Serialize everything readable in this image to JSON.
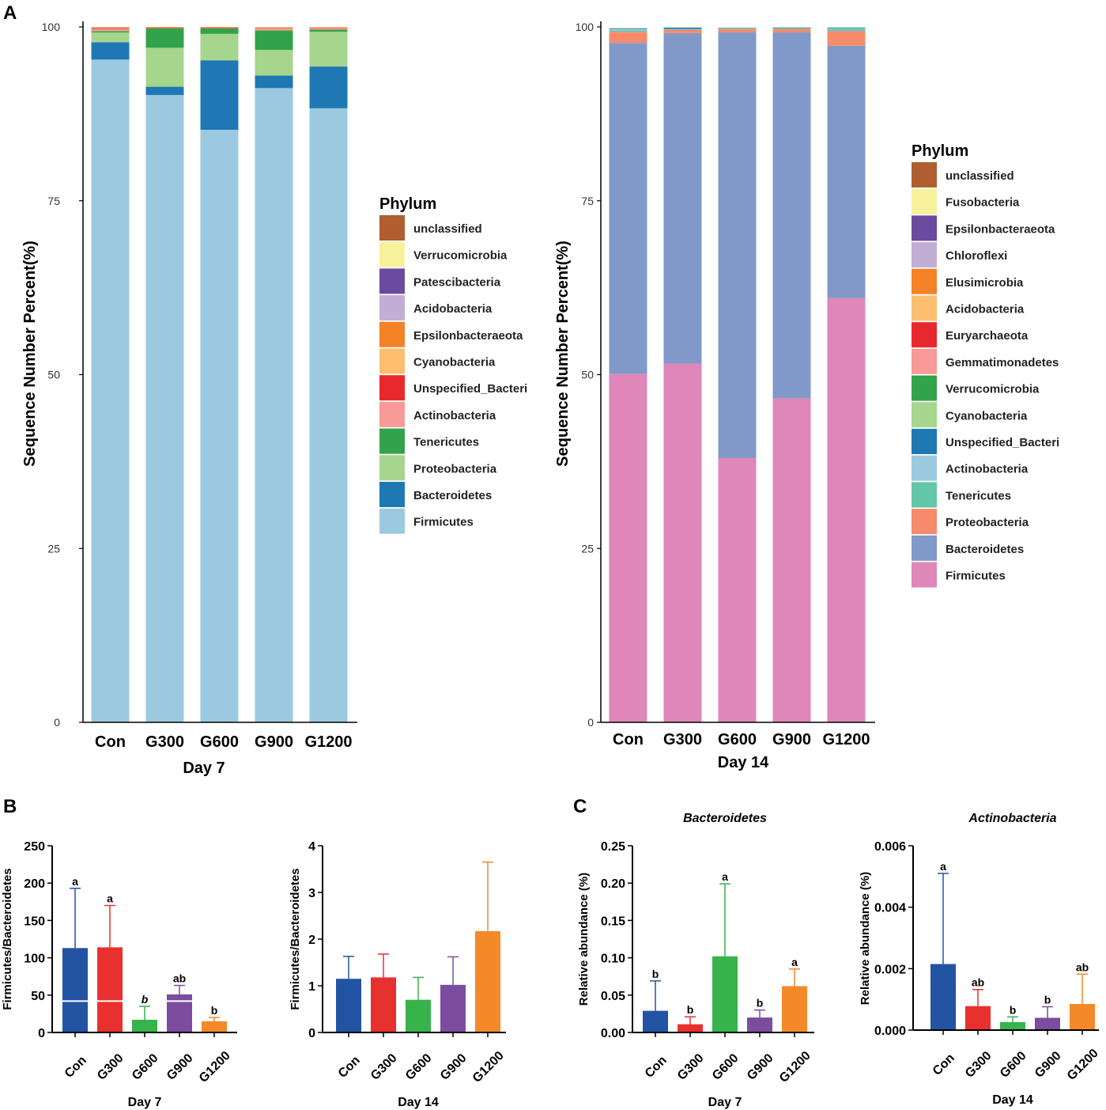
{
  "panel_labels": {
    "a": "A",
    "b": "B",
    "c": "C"
  },
  "chart_data": [
    {
      "id": "A1",
      "type": "bar",
      "stacked": true,
      "xlabel": "Day 7",
      "ylabel": "Sequence Number Percent(%)",
      "ylim": [
        0,
        100
      ],
      "yticks": [
        0,
        25,
        50,
        75,
        100
      ],
      "categories": [
        "Con",
        "G300",
        "G600",
        "G900",
        "G1200"
      ],
      "legend_title": "Phylum",
      "legend_order": [
        "unclassified",
        "Verrucomicrobia",
        "Patescibacteria",
        "Acidobacteria",
        "Epsilonbacteraeota",
        "Cyanobacteria",
        "Unspecified_Bacteri",
        "Actinobacteria",
        "Tenericutes",
        "Proteobacteria",
        "Bacteroidetes",
        "Firmicutes"
      ],
      "series": [
        {
          "name": "Firmicutes",
          "color": "#9BCAE0",
          "values": [
            95.3,
            90.2,
            85.2,
            91.2,
            88.3
          ]
        },
        {
          "name": "Bacteroidetes",
          "color": "#1F78B4",
          "values": [
            2.5,
            1.2,
            10.0,
            1.8,
            6.0
          ]
        },
        {
          "name": "Proteobacteria",
          "color": "#A6D58E",
          "values": [
            1.4,
            5.6,
            3.8,
            3.7,
            5.0
          ]
        },
        {
          "name": "Tenericutes",
          "color": "#33A34B",
          "values": [
            0.2,
            2.8,
            0.8,
            2.8,
            0.3
          ]
        },
        {
          "name": "Actinobacteria",
          "color": "#F79A98",
          "values": [
            0.3,
            0.05,
            0.05,
            0.3,
            0.2
          ]
        },
        {
          "name": "Unspecified_Bacteri",
          "color": "#E7292D",
          "values": [
            0.1,
            0.05,
            0.05,
            0.05,
            0.05
          ]
        },
        {
          "name": "Cyanobacteria",
          "color": "#FDBF6F",
          "values": [
            0.05,
            0.05,
            0.05,
            0.05,
            0.05
          ]
        },
        {
          "name": "Epsilonbacteraeota",
          "color": "#F48226",
          "values": [
            0.05,
            0.05,
            0.05,
            0.05,
            0.05
          ]
        },
        {
          "name": "Acidobacteria",
          "color": "#C2AED5",
          "values": [
            0,
            0,
            0,
            0,
            0
          ]
        },
        {
          "name": "Patescibacteria",
          "color": "#6A4B9F",
          "values": [
            0,
            0,
            0,
            0,
            0
          ]
        },
        {
          "name": "Verrucomicrobia",
          "color": "#F7F19B",
          "values": [
            0,
            0,
            0,
            0,
            0
          ]
        },
        {
          "name": "unclassified",
          "color": "#B05E30",
          "values": [
            0.05,
            0,
            0,
            0,
            0
          ]
        }
      ]
    },
    {
      "id": "A2",
      "type": "bar",
      "stacked": true,
      "xlabel": "Day 14",
      "ylabel": "Sequence Number Percent(%)",
      "ylim": [
        0,
        100
      ],
      "yticks": [
        0,
        25,
        50,
        75,
        100
      ],
      "categories": [
        "Con",
        "G300",
        "G600",
        "G900",
        "G1200"
      ],
      "legend_title": "Phylum",
      "legend_order": [
        "unclassified",
        "Fusobacteria",
        "Epsilonbacteraeota",
        "Chloroflexi",
        "Elusimicrobia",
        "Acidobacteria",
        "Euryarchaeota",
        "Gemmatimonadetes",
        "Verrucomicrobia",
        "Cyanobacteria",
        "Unspecified_Bacteri",
        "Actinobacteria",
        "Tenericutes",
        "Proteobacteria",
        "Bacteroidetes",
        "Firmicutes"
      ],
      "series": [
        {
          "name": "Firmicutes",
          "color": "#DE87B8",
          "values": [
            50.1,
            51.6,
            38.0,
            46.6,
            61.0
          ]
        },
        {
          "name": "Bacteroidetes",
          "color": "#8199C8",
          "values": [
            47.6,
            47.5,
            61.2,
            52.6,
            36.3
          ]
        },
        {
          "name": "Proteobacteria",
          "color": "#F58B6A",
          "values": [
            1.6,
            0.5,
            0.5,
            0.5,
            2.1
          ]
        },
        {
          "name": "Tenericutes",
          "color": "#62C6A8",
          "values": [
            0.2,
            0.05,
            0.05,
            0.05,
            0.3
          ]
        },
        {
          "name": "Actinobacteria",
          "color": "#9BCAE0",
          "values": [
            0.2,
            0.05,
            0.05,
            0.05,
            0.1
          ]
        },
        {
          "name": "Unspecified_Bacteri",
          "color": "#1F78B4",
          "values": [
            0.1,
            0.2,
            0.05,
            0.1,
            0.1
          ]
        },
        {
          "name": "Cyanobacteria",
          "color": "#A6D58E",
          "values": [
            0.05,
            0.05,
            0.05,
            0.05,
            0.05
          ]
        },
        {
          "name": "Verrucomicrobia",
          "color": "#33A34B",
          "values": [
            0,
            0,
            0,
            0,
            0
          ]
        },
        {
          "name": "Gemmatimonadetes",
          "color": "#F79A98",
          "values": [
            0,
            0,
            0,
            0,
            0
          ]
        },
        {
          "name": "Euryarchaeota",
          "color": "#E7292D",
          "values": [
            0,
            0,
            0,
            0,
            0
          ]
        },
        {
          "name": "Acidobacteria",
          "color": "#FDBF6F",
          "values": [
            0,
            0,
            0,
            0,
            0
          ]
        },
        {
          "name": "Elusimicrobia",
          "color": "#F48226",
          "values": [
            0,
            0,
            0,
            0,
            0
          ]
        },
        {
          "name": "Chloroflexi",
          "color": "#C2AED5",
          "values": [
            0,
            0,
            0,
            0,
            0
          ]
        },
        {
          "name": "Epsilonbacteraeota",
          "color": "#6A4B9F",
          "values": [
            0,
            0,
            0,
            0,
            0
          ]
        },
        {
          "name": "Fusobacteria",
          "color": "#F7F19B",
          "values": [
            0,
            0,
            0,
            0,
            0
          ]
        },
        {
          "name": "unclassified",
          "color": "#B05E30",
          "values": [
            0,
            0,
            0,
            0,
            0
          ]
        }
      ]
    },
    {
      "id": "B1",
      "type": "bar",
      "xlabel": "Day 7",
      "ylabel": "Firmicutes/Bacteroidetes",
      "ylim": [
        0,
        250
      ],
      "yticks": [
        "0",
        "50",
        "100",
        "150",
        "200",
        "250"
      ],
      "categories": [
        "Con",
        "G300",
        "G600",
        "G900",
        "G1200"
      ],
      "colors": [
        "#2353A3",
        "#E8302E",
        "#36B34A",
        "#7B4C9F",
        "#F4892A"
      ],
      "values": [
        113,
        114,
        17,
        51,
        15
      ],
      "errors": [
        80,
        56,
        18,
        12,
        5
      ],
      "sig_labels": [
        "a",
        "a",
        "b",
        "ab",
        "b"
      ],
      "sig_italic": [
        false,
        false,
        true,
        false,
        false
      ],
      "axis_break": true
    },
    {
      "id": "B2",
      "type": "bar",
      "xlabel": "Day 14",
      "ylabel": "Firmicutes/Bacteroidetes",
      "ylim": [
        0,
        4
      ],
      "yticks": [
        "0",
        "1",
        "2",
        "3",
        "4"
      ],
      "categories": [
        "Con",
        "G300",
        "G600",
        "G900",
        "G1200"
      ],
      "colors": [
        "#2353A3",
        "#E8302E",
        "#36B34A",
        "#7B4C9F",
        "#F4892A"
      ],
      "values": [
        1.15,
        1.18,
        0.7,
        1.02,
        2.17
      ],
      "errors": [
        0.48,
        0.5,
        0.48,
        0.6,
        1.48
      ],
      "sig_labels": [
        "",
        "",
        "",
        "",
        ""
      ],
      "sig_italic": [
        false,
        false,
        false,
        false,
        false
      ],
      "axis_break": false
    },
    {
      "id": "C1",
      "type": "bar",
      "title": "Bacteroidetes",
      "xlabel": "Day 7",
      "ylabel": "Relative abundance (%)",
      "ylim": [
        0,
        0.25
      ],
      "yticks": [
        "0.00",
        "0.05",
        "0.10",
        "0.15",
        "0.20",
        "0.25"
      ],
      "categories": [
        "Con",
        "G300",
        "G600",
        "G900",
        "G1200"
      ],
      "colors": [
        "#2353A3",
        "#E8302E",
        "#36B34A",
        "#7B4C9F",
        "#F4892A"
      ],
      "values": [
        0.029,
        0.011,
        0.102,
        0.02,
        0.062
      ],
      "errors": [
        0.04,
        0.01,
        0.097,
        0.01,
        0.023
      ],
      "sig_labels": [
        "b",
        "b",
        "a",
        "b",
        "a"
      ],
      "sig_italic": [
        false,
        false,
        false,
        false,
        false
      ],
      "axis_break": false
    },
    {
      "id": "C2",
      "type": "bar",
      "title": "Actinobacteria",
      "xlabel": "Day 14",
      "ylabel": "Relative abundance (%)",
      "ylim": [
        0,
        0.006
      ],
      "yticks": [
        "0.000",
        "0.002",
        "0.004",
        "0.006"
      ],
      "categories": [
        "Con",
        "G300",
        "G600",
        "G900",
        "G1200"
      ],
      "colors": [
        "#2353A3",
        "#E8302E",
        "#36B34A",
        "#7B4C9F",
        "#F4892A"
      ],
      "values": [
        0.00215,
        0.00078,
        0.00026,
        0.0004,
        0.00085
      ],
      "errors": [
        0.00295,
        0.00054,
        0.00017,
        0.00036,
        0.00097
      ],
      "sig_labels": [
        "a",
        "ab",
        "b",
        "b",
        "ab"
      ],
      "sig_italic": [
        false,
        false,
        false,
        false,
        false
      ],
      "axis_break": false
    }
  ]
}
